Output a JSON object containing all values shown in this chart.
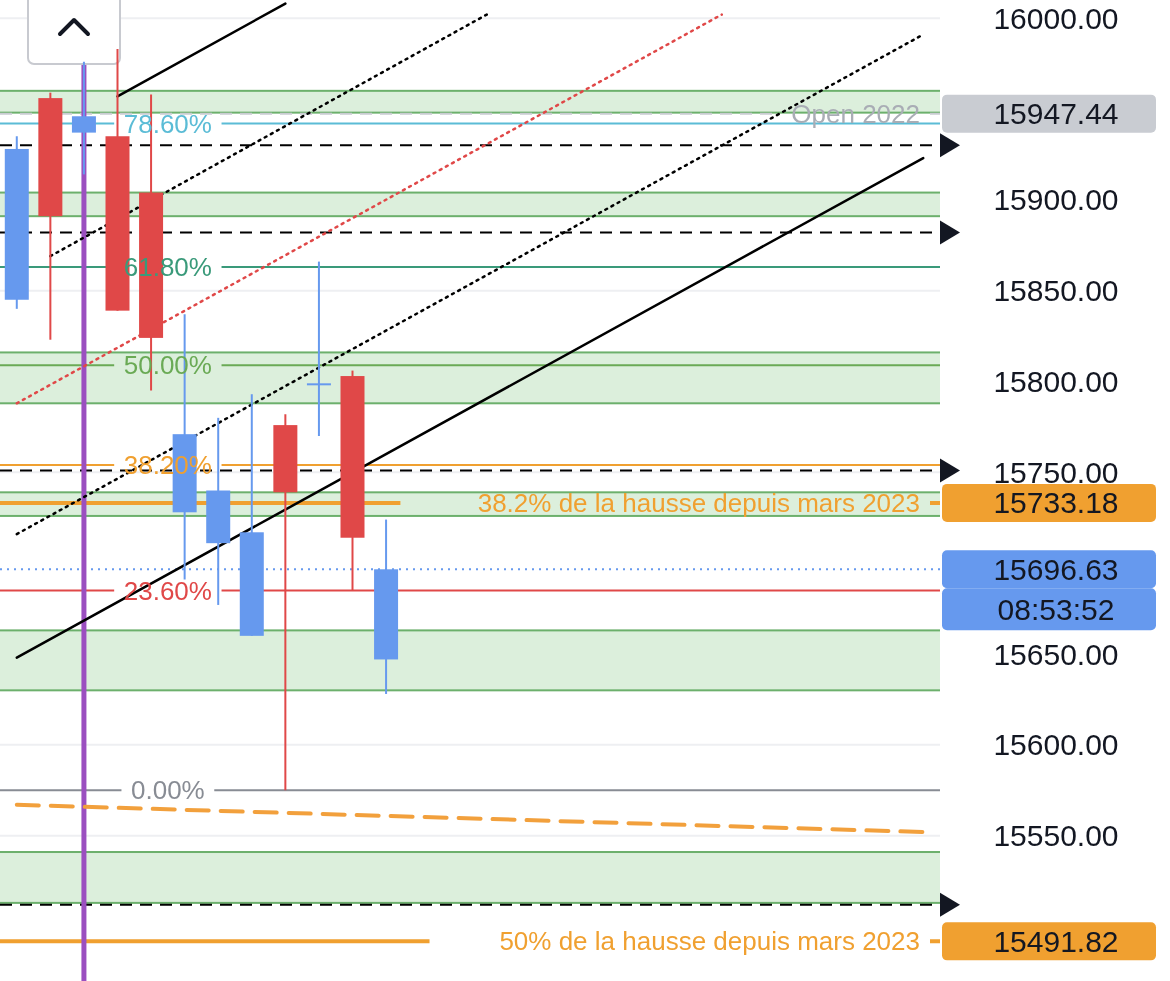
{
  "chart_data": {
    "type": "candlestick",
    "categories": [
      null,
      null,
      null,
      null,
      null,
      null,
      null,
      null,
      null,
      null,
      null,
      null,
      null,
      null,
      null,
      null,
      null,
      null,
      null,
      null,
      null,
      null,
      null,
      null,
      null,
      null,
      null,
      null
    ],
    "ohlc": [
      [
        15845,
        15935,
        15840,
        15928
      ],
      [
        15956,
        15959,
        15823,
        15891
      ],
      [
        15937,
        15976,
        15914,
        15946
      ],
      [
        15935,
        15983,
        15839,
        15839
      ],
      [
        15904,
        15958,
        15795,
        15824
      ],
      [
        15728,
        15837,
        15691,
        15771
      ],
      [
        15711,
        15780,
        15677,
        15740
      ],
      [
        15660,
        15793,
        15660,
        15717
      ],
      [
        15776,
        15782,
        15575,
        15739
      ],
      [
        15799,
        15866,
        15770,
        15799
      ],
      [
        15803,
        15806,
        15685,
        15714
      ],
      [
        15647,
        15724,
        15628,
        15696.63
      ],
      null,
      null,
      null,
      null,
      null,
      null,
      null,
      null,
      null,
      null,
      null,
      null,
      null,
      null,
      null,
      null
    ],
    "colors": [
      "#6699ee",
      "#e04848",
      "#6699ee",
      "#e04848",
      "#e04848",
      "#6699ee",
      "#6699ee",
      "#6699ee",
      "#e04848",
      "#6699ee",
      "#e04848",
      "#6699ee",
      null,
      null,
      null,
      null,
      null,
      null,
      null,
      null,
      null,
      null,
      null,
      null,
      null,
      null,
      null,
      null
    ],
    "series": [
      {
        "type": "line",
        "values": [
          15648,
          null,
          null,
          null,
          null,
          null,
          null,
          null,
          null,
          null,
          null,
          null,
          null,
          null,
          null,
          null,
          null,
          null,
          null,
          null,
          null,
          null,
          null,
          null,
          null,
          null,
          null,
          15923
        ],
        "color": "#000000",
        "line_style": "solid"
      },
      {
        "type": "line",
        "values": [
          null,
          null,
          null,
          15957,
          null,
          null,
          null,
          null,
          16008,
          null,
          null,
          null,
          null,
          null,
          null,
          null,
          null,
          null,
          null,
          null,
          null,
          null,
          null,
          null,
          null,
          null,
          null,
          null
        ],
        "color": "#000000",
        "line_style": "solid"
      },
      {
        "type": "line",
        "values": [
          15716,
          null,
          null,
          null,
          null,
          null,
          null,
          null,
          null,
          null,
          null,
          null,
          null,
          null,
          null,
          null,
          null,
          null,
          null,
          null,
          null,
          null,
          null,
          null,
          null,
          null,
          null,
          15991
        ],
        "color": "#000000",
        "line_style": "dotted"
      },
      {
        "type": "line",
        "values": [
          null,
          15869,
          null,
          null,
          null,
          null,
          null,
          null,
          null,
          null,
          null,
          null,
          null,
          null,
          16002,
          null,
          null,
          null,
          null,
          null,
          null,
          null,
          null,
          null,
          null,
          null,
          null,
          null
        ],
        "color": "#000000",
        "line_style": "dotted"
      },
      {
        "type": "line",
        "values": [
          15788,
          null,
          null,
          null,
          null,
          null,
          null,
          null,
          null,
          null,
          null,
          null,
          null,
          null,
          null,
          null,
          null,
          null,
          null,
          null,
          null,
          16002,
          null,
          null,
          null,
          null,
          null,
          null
        ],
        "color": "#e04848",
        "line_style": "dotted"
      },
      {
        "type": "line",
        "values": [
          15567,
          null,
          null,
          null,
          null,
          null,
          null,
          null,
          null,
          null,
          null,
          null,
          null,
          null,
          null,
          null,
          null,
          null,
          null,
          null,
          null,
          null,
          null,
          null,
          null,
          null,
          null,
          15552
        ],
        "color": "#f2a03c",
        "line_style": "dashed"
      }
    ],
    "ylim": [
      15470,
      16010
    ],
    "yticks": [
      {
        "value": 15550,
        "label": "15550.00"
      },
      {
        "value": 15600,
        "label": "15600.00"
      },
      {
        "value": 15650,
        "label": "15650.00"
      },
      {
        "value": 15750,
        "label": "15750.00"
      },
      {
        "value": 15800,
        "label": "15800.00"
      },
      {
        "value": 15850,
        "label": "15850.00"
      },
      {
        "value": 15900,
        "label": "15900.00"
      },
      {
        "value": 16000,
        "label": "16000.00"
      },
      15947.44,
      15733.18,
      15696.63,
      15491.82
    ],
    "tick_labels": "y",
    "grid": "y",
    "bands": [
      {
        "axis": "y",
        "from": 15948,
        "to": 15960,
        "color": "#dcefdc"
      },
      {
        "axis": "y",
        "from": 15891,
        "to": 15904,
        "color": "#dcefdc"
      },
      {
        "axis": "y",
        "from": 15788,
        "to": 15816,
        "color": "#dcefdc"
      },
      {
        "axis": "y",
        "from": 15726,
        "to": 15739,
        "color": "#dcefdc"
      },
      {
        "axis": "y",
        "from": 15630,
        "to": 15663,
        "color": "#dcefdc"
      },
      {
        "axis": "y",
        "from": 15513,
        "to": 15541,
        "color": "#dcefdc"
      }
    ],
    "ref_lines": [
      {
        "axis": "y",
        "value": 15930,
        "color": "#000000",
        "line_style": "dashed"
      },
      {
        "axis": "y",
        "value": 15882,
        "color": "#000000",
        "line_style": "dashed"
      },
      {
        "axis": "y",
        "value": 15751,
        "color": "#000000",
        "line_style": "dashed"
      },
      {
        "axis": "y",
        "value": 15512,
        "color": "#000000",
        "line_style": "dashed"
      },
      {
        "axis": "y",
        "value": 15947.44,
        "label": "Open 2022",
        "color": "#c9ccd2",
        "line_style": "dashed"
      },
      {
        "axis": "y",
        "value": 15733.18,
        "label": "38.2% de la hausse depuis mars 2023",
        "color": "#f0a030",
        "line_style": "solid"
      },
      {
        "axis": "y",
        "value": 15491.82,
        "label": "50% de la hausse depuis mars 2023",
        "color": "#f0a030",
        "line_style": "solid"
      },
      {
        "axis": "y",
        "value": 15696.63,
        "color": "#6699ee",
        "line_style": "dotted"
      },
      {
        "axis": "y",
        "value": 15942,
        "color": "#5bbcd6",
        "line_style": "solid"
      },
      {
        "axis": "y",
        "value": 15863,
        "color": "#3a9a7a",
        "line_style": "solid"
      },
      {
        "axis": "y",
        "value": 15809,
        "color": "#6aaa55",
        "line_style": "solid"
      },
      {
        "axis": "y",
        "value": 15754,
        "color": "#f0a030",
        "line_style": "solid"
      },
      {
        "axis": "y",
        "value": 15685,
        "color": "#e04848",
        "line_style": "solid"
      },
      {
        "axis": "y",
        "value": 15575,
        "color": "#888c94",
        "line_style": "solid"
      }
    ],
    "annotations": [
      "78.60%",
      "61.80%",
      "50.00%",
      "38.20%",
      "23.60%",
      "0.00%",
      "08:53:52"
    ]
  }
}
